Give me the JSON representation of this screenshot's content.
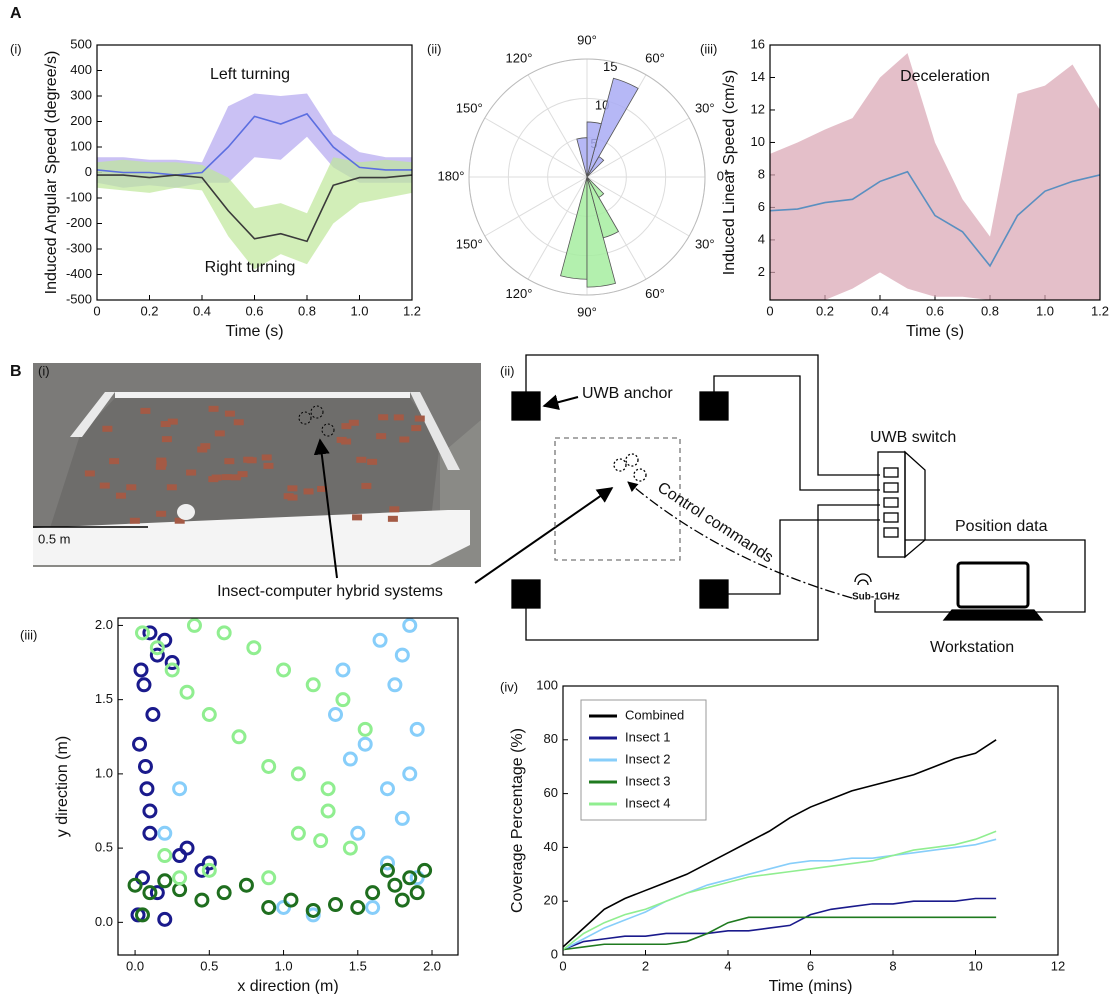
{
  "section_labels": [
    "A",
    "B"
  ],
  "chart_data": [
    {
      "type": "line",
      "panel_label": "(i)",
      "x_label": "Time (s)",
      "y_label": "Induced Angular Speed (degree/s)",
      "annotations": [
        "Left turning",
        "Right turning"
      ],
      "x": [
        0,
        0.1,
        0.2,
        0.3,
        0.4,
        0.5,
        0.6,
        0.7,
        0.8,
        0.9,
        1.0,
        1.1,
        1.2
      ],
      "xlim": [
        0,
        1.2
      ],
      "xticks": [
        0,
        0.2,
        0.4,
        0.6,
        0.8,
        {
          "value": 1.0,
          "label": "1.0"
        },
        1.2
      ],
      "ylim": [
        -500,
        500
      ],
      "yticks": [
        -500,
        -400,
        -300,
        -200,
        -100,
        0,
        100,
        200,
        300,
        400,
        500
      ],
      "series": [
        {
          "color": "#5b6ee0",
          "band_color": "#b3a6ef",
          "values": [
            10,
            0,
            0,
            -10,
            0,
            100,
            220,
            190,
            230,
            100,
            20,
            10,
            10
          ],
          "upper": [
            60,
            60,
            50,
            50,
            40,
            260,
            310,
            300,
            310,
            150,
            80,
            60,
            60
          ],
          "lower": [
            -40,
            -60,
            -50,
            -60,
            -40,
            -40,
            60,
            50,
            140,
            20,
            -40,
            -40,
            -40
          ]
        },
        {
          "color": "#3a3a3a",
          "band_color": "#bfe79a",
          "values": [
            -10,
            -10,
            -20,
            -10,
            -20,
            -150,
            -260,
            -240,
            -270,
            -50,
            -20,
            -20,
            -10
          ],
          "upper": [
            40,
            50,
            40,
            40,
            30,
            -20,
            -140,
            -120,
            -160,
            60,
            40,
            50,
            40
          ],
          "lower": [
            -60,
            -70,
            -80,
            -60,
            -70,
            -250,
            -380,
            -320,
            -360,
            -200,
            -120,
            -100,
            -80
          ]
        }
      ]
    },
    {
      "type": "polar_bar",
      "panel_label": "(ii)",
      "theta_edges": [
        -105,
        -90,
        -75,
        -60,
        -45,
        -30,
        -15,
        0,
        15,
        30,
        45,
        60,
        75,
        90,
        105
      ],
      "rlim": [
        0,
        15
      ],
      "rticks": [
        5,
        10,
        15
      ],
      "thetaticks": [
        {
          "value": 0,
          "label": "0°"
        },
        {
          "value": 30,
          "label": "30°"
        },
        {
          "value": 60,
          "label": "60°"
        },
        {
          "value": 90,
          "label": "90°"
        },
        {
          "value": 120,
          "label": "120°"
        },
        {
          "value": 150,
          "label": "150°"
        },
        {
          "value": 180,
          "label": "180°"
        },
        {
          "value": 210,
          "label": "150°"
        },
        {
          "value": 240,
          "label": "120°"
        },
        {
          "value": 270,
          "label": "90°"
        },
        {
          "value": 300,
          "label": "60°"
        },
        {
          "value": 330,
          "label": "30°"
        }
      ],
      "series": [
        {
          "color": "#a9abf5",
          "values": [
            0,
            0,
            0,
            0,
            0,
            0,
            0,
            0,
            0,
            0,
            3,
            13,
            7,
            5
          ]
        },
        {
          "color": "#a6eda0",
          "values": [
            13,
            14,
            8,
            3,
            0,
            0,
            0,
            0,
            0,
            0,
            0,
            0,
            0,
            0
          ]
        }
      ]
    },
    {
      "type": "line",
      "panel_label": "(iii)",
      "x_label": "Time (s)",
      "y_label": "Induced Linear Speed (cm/s)",
      "annotations": [
        "Deceleration"
      ],
      "x": [
        0,
        0.1,
        0.2,
        0.3,
        0.4,
        0.5,
        0.6,
        0.7,
        0.8,
        0.9,
        1.0,
        1.1,
        1.2
      ],
      "xlim": [
        0,
        1.2
      ],
      "xticks": [
        0,
        0.2,
        0.4,
        0.6,
        0.8,
        {
          "value": 1.0,
          "label": "1.0"
        },
        1.2
      ],
      "ylim": [
        0.3,
        16
      ],
      "yticks": [
        2,
        4,
        6,
        8,
        10,
        12,
        14,
        16
      ],
      "series": [
        {
          "color": "#5a8fc0",
          "band_color": "#d8a4b2",
          "values": [
            5.8,
            5.9,
            6.3,
            6.5,
            7.6,
            8.2,
            5.5,
            4.5,
            2.4,
            5.5,
            7.0,
            7.6,
            8.0
          ],
          "upper": [
            9.3,
            10,
            10.8,
            11.5,
            14,
            15.5,
            10,
            6.5,
            4.2,
            13,
            13.5,
            14.8,
            12
          ],
          "lower": [
            0.3,
            0.3,
            0.3,
            1,
            2,
            1,
            0.5,
            0.5,
            0.3,
            0.3,
            0.3,
            0.3,
            0.3
          ]
        }
      ]
    },
    {
      "type": "scatter",
      "panel_label": "(iii)",
      "x_label": "x direction (m)",
      "y_label": "y direction (m)",
      "xlim": [
        -0.115,
        2.175
      ],
      "xticks": [
        {
          "value": 0,
          "label": "0.0"
        },
        0.5,
        {
          "value": 1,
          "label": "1.0"
        },
        1.5,
        {
          "value": 2,
          "label": "2.0"
        }
      ],
      "ylim": [
        -0.22,
        2.05
      ],
      "yticks": [
        {
          "value": 0,
          "label": "0.0"
        },
        0.5,
        {
          "value": 1,
          "label": "1.0"
        },
        1.5,
        {
          "value": 2,
          "label": "2.0"
        }
      ],
      "series": [
        {
          "color": "#1a1a8c",
          "x": [
            0.02,
            0.05,
            0.1,
            0.08,
            0.03,
            0.12,
            0.06,
            0.15,
            0.1,
            0.04,
            0.2,
            0.25,
            0.3,
            0.35,
            0.45,
            0.5,
            0.07,
            0.1,
            0.2,
            0.15
          ],
          "values": [
            0.05,
            0.3,
            0.6,
            0.9,
            1.2,
            1.4,
            1.6,
            1.8,
            1.95,
            1.7,
            1.9,
            1.75,
            0.45,
            0.5,
            0.35,
            0.4,
            1.05,
            0.75,
            0.02,
            0.2
          ]
        },
        {
          "color": "#87cefa",
          "x": [
            1.6,
            1.7,
            1.8,
            1.85,
            1.9,
            1.75,
            1.65,
            1.55,
            1.8,
            1.7,
            1.5,
            1.45,
            1.35,
            1.4,
            0.2,
            0.3,
            1.0,
            1.2,
            1.9,
            1.85
          ],
          "values": [
            0.1,
            0.4,
            0.7,
            1.0,
            1.3,
            1.6,
            1.9,
            1.2,
            1.8,
            0.9,
            0.6,
            1.1,
            1.4,
            1.7,
            0.6,
            0.9,
            0.1,
            0.05,
            0.3,
            2.0
          ]
        },
        {
          "color": "#1f6e1f",
          "x": [
            0.0,
            0.1,
            0.2,
            0.3,
            0.45,
            0.6,
            0.75,
            0.9,
            1.05,
            1.2,
            1.35,
            1.5,
            1.6,
            1.7,
            1.75,
            1.8,
            1.85,
            1.9,
            1.95,
            0.05
          ],
          "values": [
            0.25,
            0.2,
            0.28,
            0.22,
            0.15,
            0.2,
            0.25,
            0.1,
            0.15,
            0.08,
            0.12,
            0.1,
            0.2,
            0.35,
            0.25,
            0.15,
            0.3,
            0.2,
            0.35,
            0.05
          ]
        },
        {
          "color": "#90ee90",
          "x": [
            0.05,
            0.15,
            0.25,
            0.35,
            0.5,
            0.7,
            0.9,
            1.1,
            1.3,
            0.4,
            0.6,
            0.8,
            1.0,
            1.2,
            1.4,
            1.55,
            1.3,
            1.1,
            0.5,
            0.3,
            0.2,
            0.9,
            1.25,
            1.45
          ],
          "values": [
            1.95,
            1.85,
            1.7,
            1.55,
            1.4,
            1.25,
            1.05,
            1.0,
            0.9,
            2.0,
            1.95,
            1.85,
            1.7,
            1.6,
            1.5,
            1.3,
            0.75,
            0.6,
            0.35,
            0.3,
            0.45,
            0.3,
            0.55,
            0.5
          ]
        }
      ]
    },
    {
      "type": "line",
      "panel_label": "(iv)",
      "x_label": "Time (mins)",
      "y_label": "Coverage Percentage (%)",
      "legend": "upper left",
      "x": [
        0,
        0.5,
        1,
        1.5,
        2,
        2.5,
        3,
        3.5,
        4,
        4.5,
        5,
        5.5,
        6,
        6.5,
        7,
        7.5,
        8,
        8.5,
        9,
        9.5,
        10,
        10.5
      ],
      "xlim": [
        0,
        12
      ],
      "xticks": [
        0,
        2,
        4,
        6,
        8,
        10,
        12
      ],
      "ylim": [
        0,
        100
      ],
      "yticks": [
        0,
        20,
        40,
        60,
        80,
        100
      ],
      "series": [
        {
          "name": "Combined",
          "color": "#000000",
          "values": [
            3,
            10,
            17,
            21,
            24,
            27,
            30,
            34,
            38,
            42,
            46,
            51,
            55,
            58,
            61,
            63,
            65,
            67,
            70,
            73,
            75,
            80
          ]
        },
        {
          "name": "Insect 1",
          "color": "#1a1a8c",
          "values": [
            2,
            5,
            6,
            7,
            7,
            8,
            8,
            8,
            9,
            9,
            10,
            11,
            15,
            17,
            18,
            19,
            19,
            20,
            20,
            20,
            21,
            21
          ]
        },
        {
          "name": "Insect 2",
          "color": "#87cefa",
          "values": [
            2,
            6,
            10,
            13,
            16,
            20,
            23,
            26,
            28,
            30,
            32,
            34,
            35,
            35,
            36,
            36,
            37,
            38,
            39,
            40,
            41,
            43
          ]
        },
        {
          "name": "Insect 3",
          "color": "#1f7a1f",
          "values": [
            2,
            3,
            4,
            4,
            4,
            4,
            5,
            8,
            12,
            14,
            14,
            14,
            14,
            14,
            14,
            14,
            14,
            14,
            14,
            14,
            14,
            14
          ]
        },
        {
          "name": "Insect 4",
          "color": "#90ee90",
          "values": [
            2,
            8,
            12,
            15,
            17,
            20,
            23,
            25,
            27,
            29,
            30,
            31,
            32,
            33,
            34,
            35,
            37,
            39,
            40,
            41,
            43,
            46
          ]
        }
      ]
    }
  ],
  "photo": {
    "panel_label": "(i)",
    "scale_label": "0.5 m",
    "callout": "Insect-computer hybrid systems"
  },
  "diagram": {
    "panel_label": "(ii)",
    "anchor_label": "UWB anchor",
    "switch_label": "UWB switch",
    "command_label": "Control commands",
    "position_label": "Position data",
    "radio_label": "Sub-1GHz",
    "workstation_label": "Workstation"
  }
}
